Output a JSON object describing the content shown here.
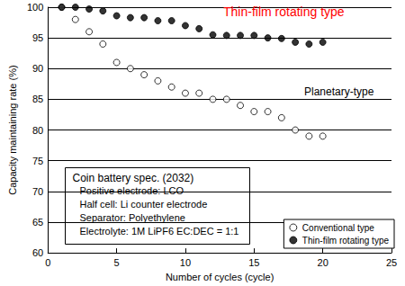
{
  "chart_data": {
    "type": "scatter",
    "x_label": "Number of cycles (cycle)",
    "y_label": "Capacity maintaining rate (%)",
    "x": [
      1,
      2,
      3,
      4,
      5,
      6,
      7,
      8,
      9,
      10,
      11,
      12,
      13,
      14,
      15,
      16,
      17,
      18,
      19,
      20
    ],
    "series": [
      {
        "name": "Conventional type",
        "color": "#000000",
        "marker": "circle_open",
        "values": [
          100,
          98,
          96,
          94,
          91,
          90,
          89,
          88,
          87,
          86,
          86,
          85,
          85,
          84,
          83,
          83,
          82,
          80,
          79,
          79
        ]
      },
      {
        "name": "Thin-film rotating type",
        "color": "#000000",
        "marker": "circle",
        "values": [
          100,
          100,
          99.7,
          99.4,
          98.6,
          98.3,
          98.3,
          97.8,
          97.8,
          97,
          96.5,
          95.5,
          95.4,
          95.4,
          95.4,
          95,
          94.9,
          94.3,
          94,
          94.3
        ]
      }
    ],
    "xlim": [
      0,
      25
    ],
    "xticks": [
      0,
      5,
      10,
      15,
      20,
      25
    ],
    "ylim": [
      60,
      100
    ],
    "yticks": [
      60,
      65,
      70,
      75,
      80,
      85,
      90,
      95,
      100
    ],
    "grid": "y",
    "legend": "lower right",
    "annotations": [
      {
        "text": "Thin-film rotating type",
        "color": "#ff0000"
      },
      {
        "text": "Planetary-type",
        "color": "#000000"
      }
    ],
    "text_box": [
      "Coin battery spec. (2032)",
      "Positive electrode: LCO",
      "Half cell: Li counter electrode",
      "Separator: Polyethylene",
      "Electrolyte: 1M LiPF6 EC:DEC = 1:1"
    ]
  }
}
